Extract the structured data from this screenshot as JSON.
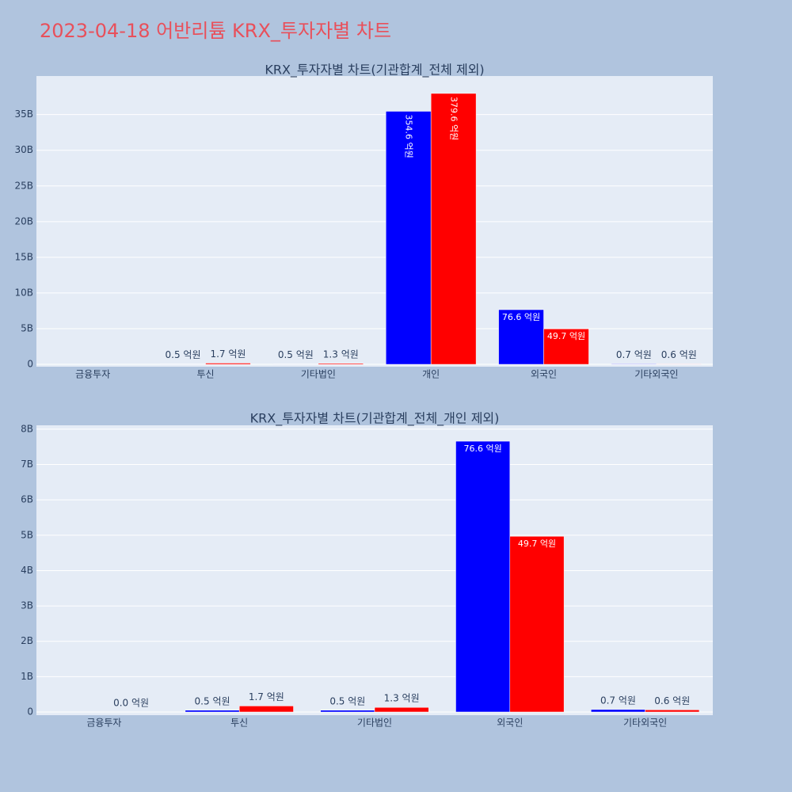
{
  "title": "2023-04-18 어반리튬 KRX_투자자별 차트",
  "chart_data": [
    {
      "type": "bar",
      "title": "KRX_투자자별 차트(기관합계_전체 제외)",
      "categories": [
        "금융투자",
        "투신",
        "기타법인",
        "개인",
        "외국인",
        "기타외국인"
      ],
      "series": [
        {
          "color": "#0000ff",
          "values": [
            null,
            0.05,
            0.05,
            35.46,
            7.66,
            0.07
          ],
          "value_labels": [
            null,
            "0.5 억원",
            "0.5 억원",
            "354.6 억원",
            "76.6 억원",
            "0.7 억원"
          ]
        },
        {
          "color": "#ff0000",
          "values": [
            null,
            0.17,
            0.13,
            37.96,
            4.97,
            0.06
          ],
          "value_labels": [
            null,
            "1.7 억원",
            "1.3 억원",
            "379.6 억원",
            "49.7 억원",
            "0.6 억원"
          ]
        }
      ],
      "ylim": [
        -0.33,
        40.4
      ],
      "yticks": [
        0,
        {
          "value": 5,
          "label": "5B"
        },
        {
          "value": 10,
          "label": "10B"
        },
        {
          "value": 15,
          "label": "15B"
        },
        {
          "value": 20,
          "label": "20B"
        },
        {
          "value": 25,
          "label": "25B"
        },
        {
          "value": 30,
          "label": "30B"
        },
        {
          "value": 35,
          "label": "35B"
        }
      ],
      "grid": true
    },
    {
      "type": "bar",
      "title": "KRX_투자자별 차트(기관합계_전체_개인 제외)",
      "categories": [
        "금융투자",
        "투신",
        "기타법인",
        "외국인",
        "기타외국인"
      ],
      "series": [
        {
          "color": "#0000ff",
          "values": [
            null,
            0.05,
            0.05,
            7.66,
            0.07
          ],
          "value_labels": [
            null,
            "0.5 억원",
            "0.5 억원",
            "76.6 억원",
            "0.7 억원"
          ]
        },
        {
          "color": "#ff0000",
          "values": [
            0,
            0.17,
            0.13,
            4.97,
            0.06
          ],
          "value_labels": [
            "0.0 억원",
            "1.7 억원",
            "1.3 억원",
            "49.7 억원",
            "0.6 억원"
          ]
        }
      ],
      "ylim": [
        -0.09,
        8.11
      ],
      "yticks": [
        0,
        {
          "value": 1,
          "label": "1B"
        },
        {
          "value": 2,
          "label": "2B"
        },
        {
          "value": 3,
          "label": "3B"
        },
        {
          "value": 4,
          "label": "4B"
        },
        {
          "value": 5,
          "label": "5B"
        },
        {
          "value": 6,
          "label": "6B"
        },
        {
          "value": 7,
          "label": "7B"
        },
        {
          "value": 8,
          "label": "8B"
        }
      ],
      "grid": true
    }
  ]
}
